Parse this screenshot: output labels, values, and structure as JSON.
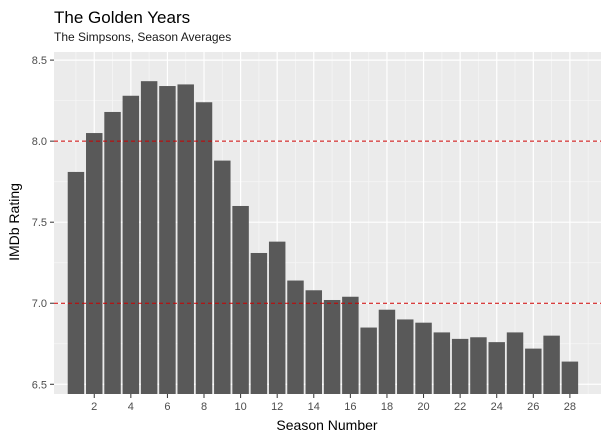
{
  "chart_data": {
    "type": "bar",
    "title": "The Golden Years",
    "subtitle": "The Simpsons, Season Averages",
    "xlabel": "Season Number",
    "ylabel": "IMDb Rating",
    "categories": [
      1,
      2,
      3,
      4,
      5,
      6,
      7,
      8,
      9,
      10,
      11,
      12,
      13,
      14,
      15,
      16,
      17,
      18,
      19,
      20,
      21,
      22,
      23,
      24,
      25,
      26,
      27,
      28
    ],
    "values": [
      7.81,
      8.05,
      8.18,
      8.28,
      8.37,
      8.34,
      8.35,
      8.24,
      7.88,
      7.6,
      7.31,
      7.38,
      7.14,
      7.08,
      7.02,
      7.04,
      6.85,
      6.96,
      6.9,
      6.88,
      6.82,
      6.78,
      6.79,
      6.76,
      6.82,
      6.72,
      6.8,
      6.64
    ],
    "xlim": [
      -0.2,
      29.7
    ],
    "ylim": [
      6.44,
      8.55
    ],
    "x_ticks": [
      2,
      4,
      6,
      8,
      10,
      12,
      14,
      16,
      18,
      20,
      22,
      24,
      26,
      28
    ],
    "x_tick_labels": [
      "2",
      "4",
      "6",
      "8",
      "10",
      "12",
      "14",
      "16",
      "18",
      "20",
      "22",
      "24",
      "26",
      "28"
    ],
    "y_ticks": [
      6.5,
      7.0,
      7.5,
      8.0,
      8.5
    ],
    "y_tick_labels": [
      "6.5",
      "7.0",
      "7.5",
      "8.0",
      "8.5"
    ],
    "reference_lines": [
      7.0,
      8.0
    ],
    "grid": true,
    "colors": {
      "bar": "#595959",
      "panel": "#ebebeb",
      "grid_major": "#ffffff",
      "grid_minor": "#f5f5f5",
      "reference_line": "#cc0000"
    }
  }
}
